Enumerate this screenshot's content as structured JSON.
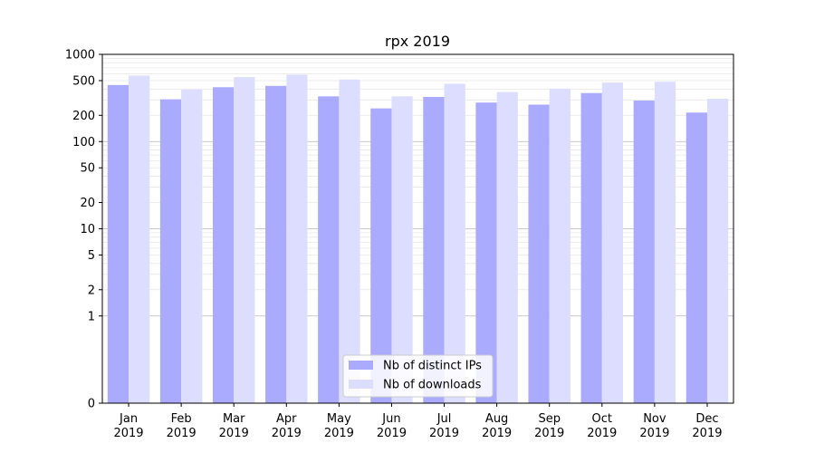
{
  "chart_data": {
    "type": "bar",
    "title": "rpx 2019",
    "xlabel": "",
    "ylabel": "",
    "yscale": "symlog",
    "ylim": [
      0,
      1000
    ],
    "grid": true,
    "legend_position": "bottom-center",
    "categories": [
      [
        "Jan",
        "2019"
      ],
      [
        "Feb",
        "2019"
      ],
      [
        "Mar",
        "2019"
      ],
      [
        "Apr",
        "2019"
      ],
      [
        "May",
        "2019"
      ],
      [
        "Jun",
        "2019"
      ],
      [
        "Jul",
        "2019"
      ],
      [
        "Aug",
        "2019"
      ],
      [
        "Sep",
        "2019"
      ],
      [
        "Oct",
        "2019"
      ],
      [
        "Nov",
        "2019"
      ],
      [
        "Dec",
        "2019"
      ]
    ],
    "yticks": [
      "0",
      "1",
      "2",
      "5",
      "10",
      "20",
      "50",
      "100",
      "200",
      "500",
      "1000"
    ],
    "series": [
      {
        "name": "Nb of distinct IPs",
        "color": "#aaaaff",
        "values": [
          445,
          305,
          420,
          435,
          330,
          240,
          325,
          280,
          265,
          360,
          295,
          215
        ]
      },
      {
        "name": "Nb of downloads",
        "color": "#ddddff",
        "values": [
          570,
          395,
          550,
          585,
          515,
          330,
          460,
          370,
          405,
          475,
          485,
          310
        ]
      }
    ]
  }
}
